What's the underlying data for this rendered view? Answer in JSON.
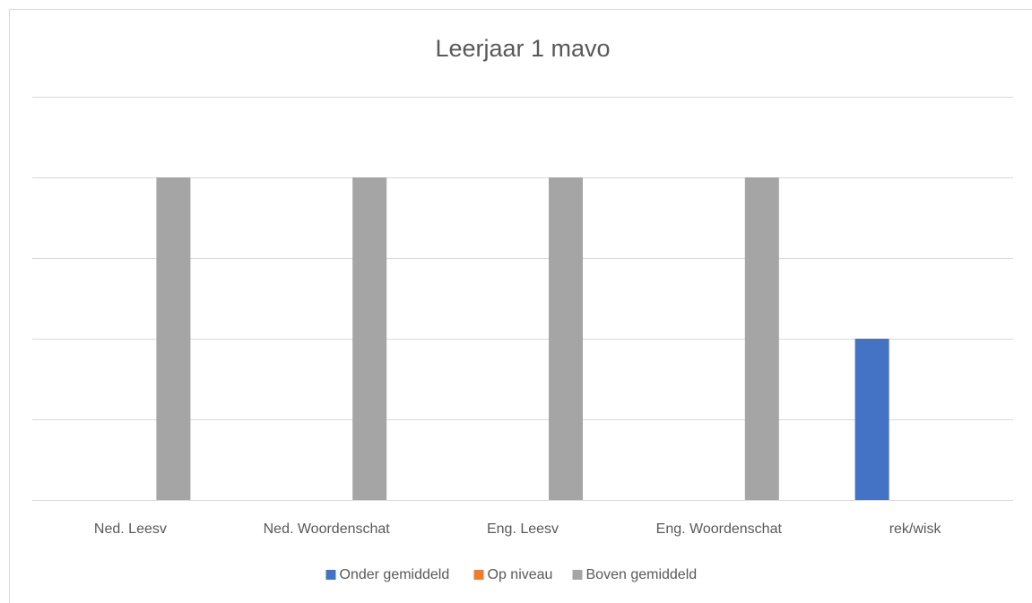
{
  "chart_data": {
    "type": "bar",
    "title": "Leerjaar 1 mavo",
    "categories": [
      "Ned. Leesv",
      "Ned. Woordenschat",
      "Eng. Leesv",
      "Eng. Woordenschat",
      "rek/wisk"
    ],
    "series": [
      {
        "name": "Onder gemiddeld",
        "color": "#4472c4",
        "values": [
          0,
          0,
          0,
          0,
          2
        ]
      },
      {
        "name": "Op niveau",
        "color": "#ed7d31",
        "values": [
          0,
          0,
          0,
          0,
          0
        ]
      },
      {
        "name": "Boven gemiddeld",
        "color": "#a5a5a5",
        "values": [
          4,
          4,
          4,
          4,
          0
        ]
      }
    ],
    "ylim": [
      0,
      5
    ],
    "yticks": [
      0,
      1,
      2,
      3,
      4,
      5
    ],
    "ytick_labels": false,
    "grid": true,
    "legend": "bottom"
  }
}
